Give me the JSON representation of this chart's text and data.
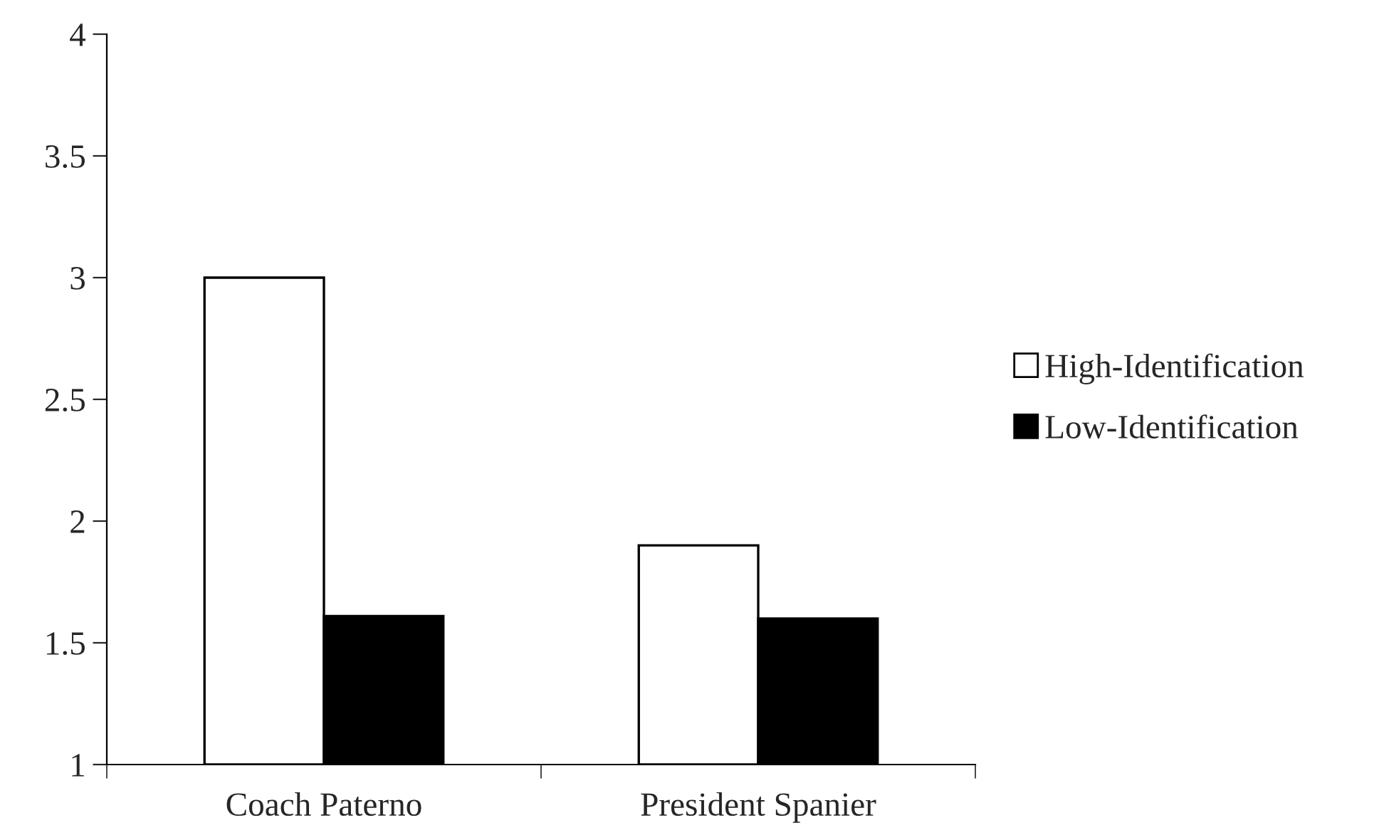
{
  "chart_data": {
    "type": "bar",
    "categories": [
      "Coach Paterno",
      "President Spanier"
    ],
    "series": [
      {
        "name": "High-Identification",
        "color": "#ffffff",
        "values": [
          3.0,
          1.9
        ]
      },
      {
        "name": "Low-Identification",
        "color": "#000000",
        "values": [
          1.61,
          1.6
        ]
      }
    ],
    "ylim": [
      1,
      4
    ],
    "yticks": [
      1,
      1.5,
      2,
      2.5,
      3,
      3.5,
      4
    ],
    "legend": "right",
    "grid": false
  }
}
